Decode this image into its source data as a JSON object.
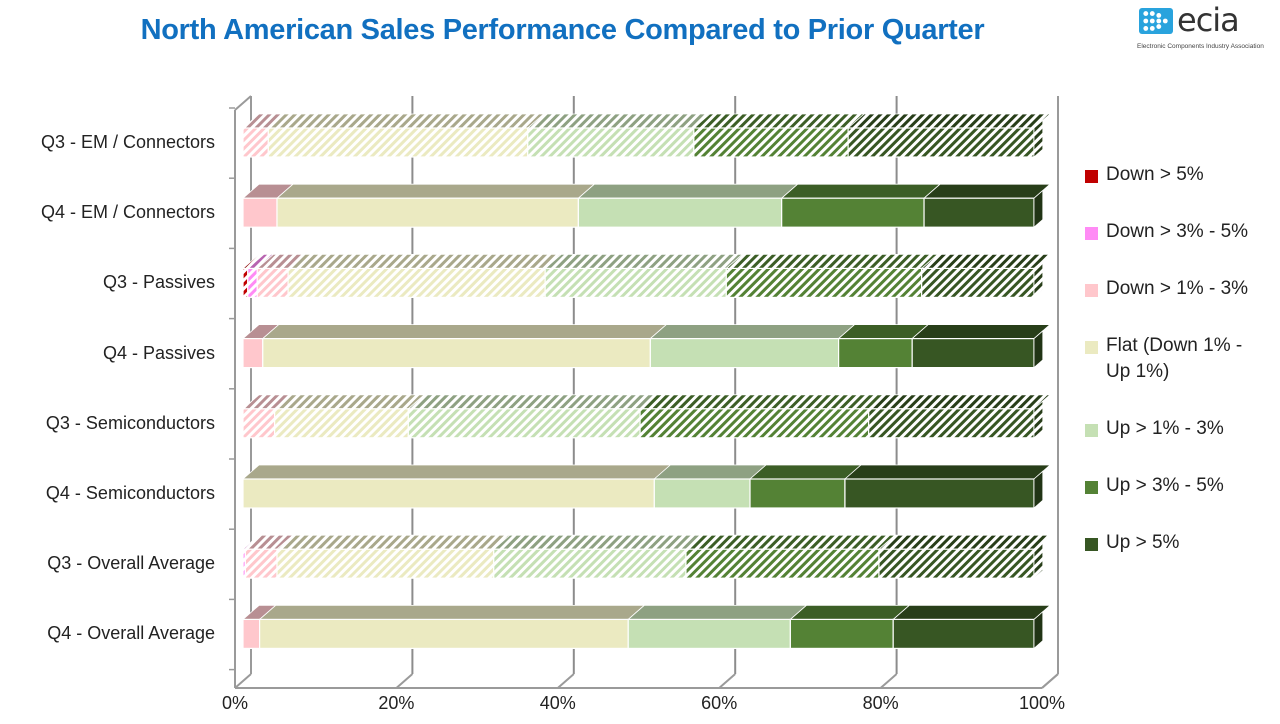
{
  "header": {
    "title": "North American Sales Performance Compared to Prior Quarter",
    "logo_text": "ecia",
    "logo_subtext": "Electronic Components Industry Association"
  },
  "chart_data": {
    "type": "bar",
    "orientation": "horizontal",
    "stacked": "100%",
    "style": "3d",
    "title": "North American Sales Performance Compared to Prior Quarter",
    "xlabel": "",
    "ylabel": "",
    "xlim": [
      0,
      100
    ],
    "x_ticks": [
      "0%",
      "20%",
      "40%",
      "60%",
      "80%",
      "100%"
    ],
    "grid": true,
    "legend_position": "right",
    "categories": [
      "Q3 - EM / Connectors",
      "Q4 - EM / Connectors",
      "Q3 - Passives",
      "Q4 - Passives",
      "Q3 - Semiconductors",
      "Q4 - Semiconductors",
      "Q3 - Overall Average",
      "Q4 - Overall Average"
    ],
    "hatched_categories": [
      true,
      false,
      true,
      false,
      true,
      false,
      true,
      false
    ],
    "series": [
      {
        "name": "Down > 5%",
        "color": "#C00000",
        "values": [
          0,
          0,
          0.6,
          0,
          0,
          0,
          0,
          0
        ]
      },
      {
        "name": "Down > 3% - 5%",
        "color": "#FF8BF5",
        "values": [
          0,
          0,
          1.2,
          0,
          0,
          0,
          0.3,
          0
        ]
      },
      {
        "name": "Down > 1% - 3%",
        "color": "#FFC7CC",
        "values": [
          3.2,
          4.3,
          3.9,
          2.5,
          4.0,
          0,
          4.0,
          2.1
        ]
      },
      {
        "name": "Flat (Down 1% - Up 1%)",
        "color": "#EBEAC1",
        "values": [
          32.8,
          38.1,
          32.5,
          49.0,
          16.9,
          52.0,
          27.4,
          46.6
        ]
      },
      {
        "name": "Up > 1% - 3%",
        "color": "#C5E0B4",
        "values": [
          21.0,
          25.7,
          22.9,
          23.8,
          29.3,
          12.1,
          24.3,
          20.5
        ]
      },
      {
        "name": "Up > 3% - 5%",
        "color": "#548235",
        "values": [
          19.5,
          18.0,
          24.7,
          9.3,
          28.9,
          12.0,
          24.4,
          13.0
        ]
      },
      {
        "name": "Up > 5%",
        "color": "#375623",
        "values": [
          23.5,
          13.9,
          14.2,
          15.4,
          20.9,
          23.9,
          19.6,
          17.8
        ]
      }
    ]
  }
}
